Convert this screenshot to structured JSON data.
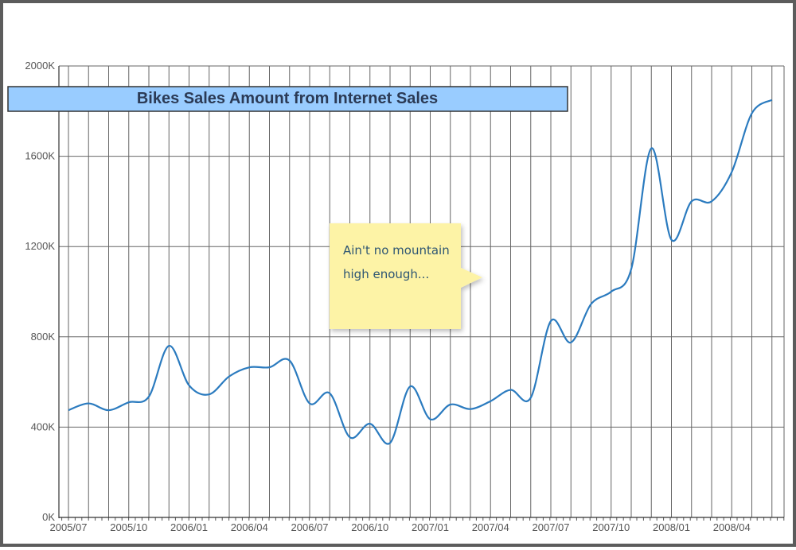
{
  "chart_data": {
    "type": "line",
    "title": "Bikes Sales Amount from Internet Sales",
    "xlabel": "",
    "ylabel": "",
    "ylim": [
      0,
      2000000
    ],
    "y_ticks": [
      "0K",
      "400K",
      "800K",
      "1200K",
      "1600K",
      "2000K"
    ],
    "x_ticks": [
      "2005/07",
      "2005/10",
      "2006/01",
      "2006/04",
      "2006/07",
      "2006/10",
      "2007/01",
      "2007/04",
      "2007/07",
      "2007/10",
      "2008/01",
      "2008/04"
    ],
    "grid": true,
    "legend": "none",
    "line_color": "#2b7bbf",
    "title_bg_color": "#99ccff",
    "note_bg_color": "#fdf3a6",
    "annotation": {
      "lines": [
        "Ain't no mountain",
        "high enough..."
      ]
    },
    "series": [
      {
        "x": [
          "2005/07",
          "2005/08",
          "2005/09",
          "2005/10",
          "2005/11",
          "2005/12",
          "2006/01",
          "2006/02",
          "2006/03",
          "2006/04",
          "2006/05",
          "2006/06",
          "2006/07",
          "2006/08",
          "2006/09",
          "2006/10",
          "2006/11",
          "2006/12",
          "2007/01",
          "2007/02",
          "2007/03",
          "2007/04",
          "2007/05",
          "2007/06",
          "2007/07",
          "2007/08",
          "2007/09",
          "2007/10",
          "2007/11",
          "2007/12",
          "2008/01",
          "2008/02",
          "2008/03",
          "2008/04",
          "2008/05",
          "2008/06"
        ],
        "values": [
          475000,
          505000,
          475000,
          510000,
          535000,
          760000,
          585000,
          545000,
          625000,
          665000,
          665000,
          695000,
          505000,
          550000,
          355000,
          415000,
          330000,
          580000,
          435000,
          500000,
          480000,
          515000,
          565000,
          530000,
          870000,
          775000,
          945000,
          1000000,
          1100000,
          1635000,
          1230000,
          1400000,
          1400000,
          1530000,
          1790000,
          1850000
        ]
      }
    ]
  }
}
